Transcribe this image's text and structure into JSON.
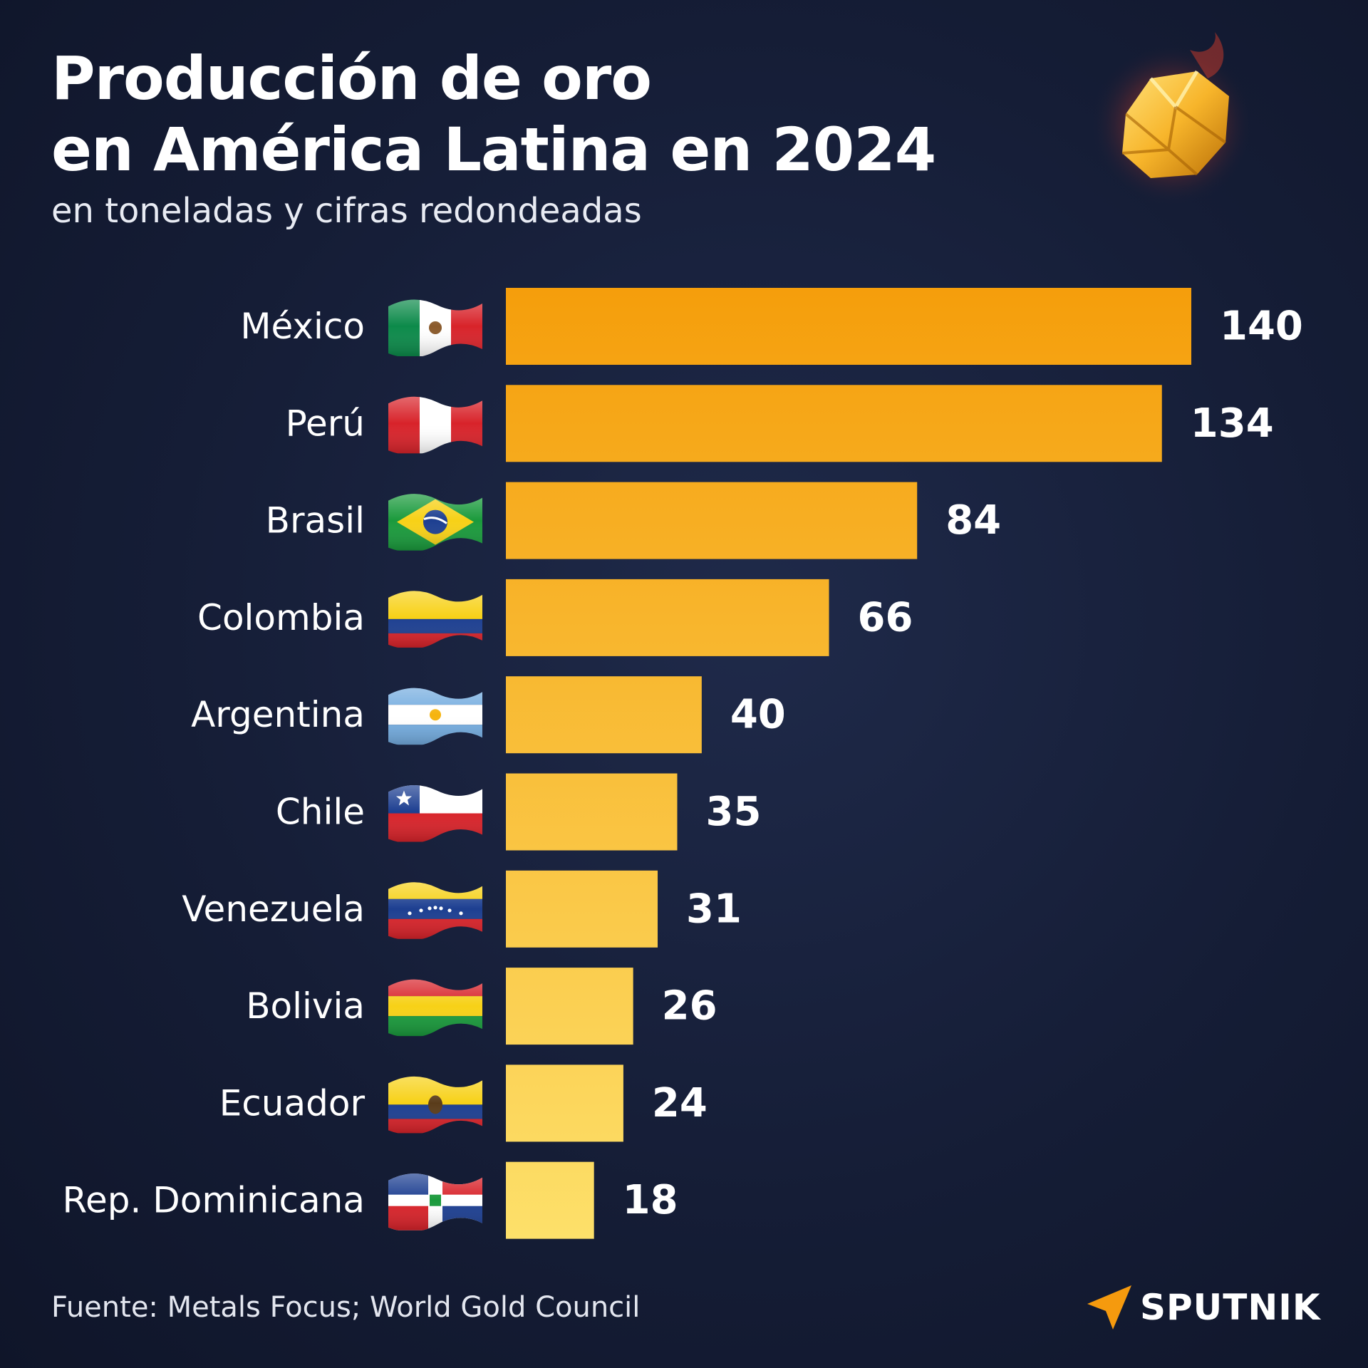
{
  "header": {
    "title_line1": "Producción de oro",
    "title_line2": "en América Latina en 2024",
    "subtitle": "en toneladas y cifras redondeadas"
  },
  "footer": {
    "source": "Fuente: Metals Focus; World Gold Council",
    "brand": "SPUTNIK"
  },
  "colors": {
    "background": "#151d36",
    "bar_top": "#f59e0b",
    "bar_bottom": "#fde06a",
    "text": "#ffffff",
    "brand_accent": "#f59a0e"
  },
  "icons": {
    "header_image": "gold-nugget-icon",
    "brand_logo": "sputnik-arrow-icon"
  },
  "chart_data": {
    "type": "bar",
    "orientation": "horizontal",
    "categories": [
      "México",
      "Perú",
      "Brasil",
      "Colombia",
      "Argentina",
      "Chile",
      "Venezuela",
      "Bolivia",
      "Ecuador",
      "Rep. Dominicana"
    ],
    "values": [
      140,
      134,
      84,
      66,
      40,
      35,
      31,
      26,
      24,
      18
    ],
    "data_labels": [
      "140",
      "134",
      "84",
      "66",
      "40",
      "35",
      "31",
      "26",
      "24",
      "18"
    ],
    "flags": [
      "flag-mexico-icon",
      "flag-peru-icon",
      "flag-brazil-icon",
      "flag-colombia-icon",
      "flag-argentina-icon",
      "flag-chile-icon",
      "flag-venezuela-icon",
      "flag-bolivia-icon",
      "flag-ecuador-icon",
      "flag-dominican-republic-icon"
    ],
    "xlim": [
      0,
      140
    ],
    "grid": false,
    "legend": "none"
  }
}
